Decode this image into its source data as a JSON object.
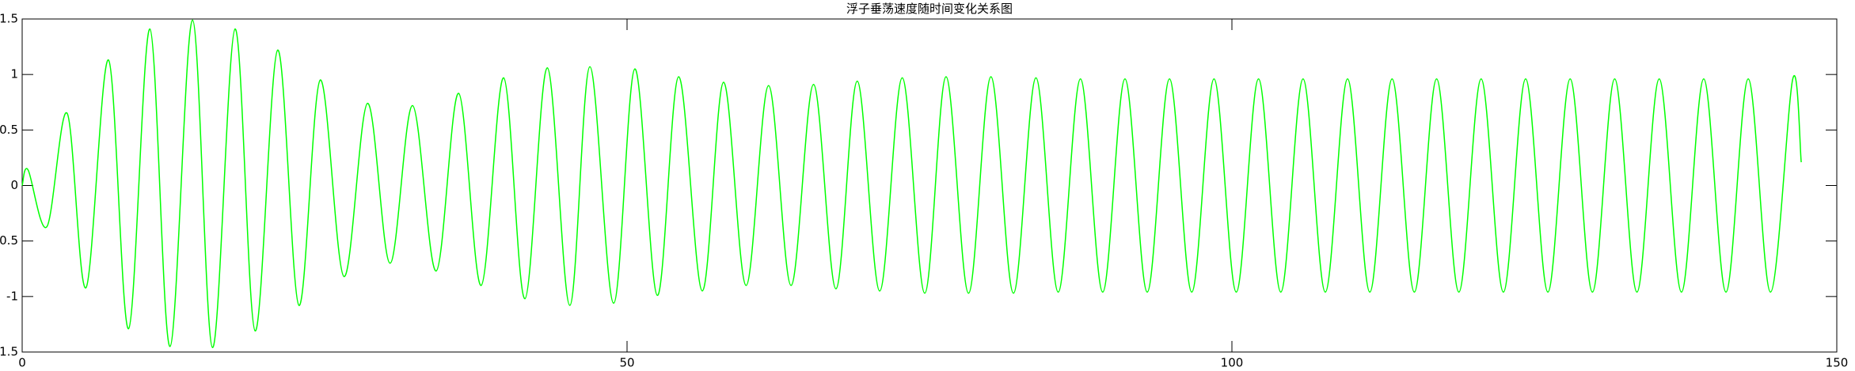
{
  "chart_data": {
    "type": "line",
    "title": "浮子垂荡速度随时间变化关系图",
    "color": "#00ff00",
    "x": [
      0,
      0.49,
      2.05,
      3.72,
      5.28,
      7.14,
      8.8,
      10.56,
      12.22,
      14.08,
      15.74,
      17.6,
      19.26,
      21.12,
      22.88,
      24.64,
      26.6,
      28.55,
      30.41,
      32.27,
      34.22,
      36.08,
      37.94,
      39.8,
      41.56,
      43.41,
      45.27,
      46.93,
      48.89,
      50.65,
      52.51,
      54.27,
      56.22,
      57.98,
      59.84,
      61.7,
      63.56,
      65.42,
      67.27,
      69.03,
      70.89,
      72.75,
      74.61,
      76.37,
      78.23,
      80.08,
      81.94,
      83.8,
      85.64,
      87.48,
      89.32,
      91.16,
      93.0,
      94.84,
      96.68,
      98.52,
      100.36,
      102.2,
      104.04,
      105.88,
      107.72,
      109.56,
      111.4,
      113.24,
      115.08,
      116.92,
      118.76,
      120.6,
      122.44,
      124.28,
      126.12,
      127.96,
      129.8,
      131.64,
      133.48,
      135.32,
      137.16,
      139.0,
      140.84,
      142.68,
      144.52,
      146.36,
      147.06
    ],
    "values": [
      0,
      0.14,
      -0.37,
      0.65,
      -0.92,
      1.13,
      -1.29,
      1.41,
      -1.45,
      1.49,
      -1.46,
      1.41,
      -1.31,
      1.22,
      -1.08,
      0.95,
      -0.82,
      0.74,
      -0.7,
      0.72,
      -0.77,
      0.83,
      -0.9,
      0.97,
      -1.02,
      1.06,
      -1.08,
      1.07,
      -1.06,
      1.05,
      -0.99,
      0.98,
      -0.95,
      0.93,
      -0.9,
      0.9,
      -0.9,
      0.91,
      -0.93,
      0.94,
      -0.95,
      0.97,
      -0.97,
      0.98,
      -0.97,
      0.98,
      -0.97,
      0.97,
      -0.96,
      0.96,
      -0.96,
      0.96,
      -0.96,
      0.96,
      -0.96,
      0.96,
      -0.96,
      0.96,
      -0.96,
      0.96,
      -0.96,
      0.96,
      -0.96,
      0.96,
      -0.96,
      0.96,
      -0.96,
      0.96,
      -0.96,
      0.96,
      -0.96,
      0.96,
      -0.96,
      0.96,
      -0.96,
      0.96,
      -0.96,
      0.96,
      -0.96,
      0.96,
      -0.96,
      0.96,
      0.21
    ],
    "xlim": [
      0,
      150
    ],
    "xticks": [
      0,
      50,
      100,
      150
    ],
    "ylim": [
      -1.5,
      1.5
    ],
    "yticks": [
      -1.5,
      -1,
      -0.5,
      0,
      0.5,
      1,
      1.5
    ],
    "grid": false
  }
}
